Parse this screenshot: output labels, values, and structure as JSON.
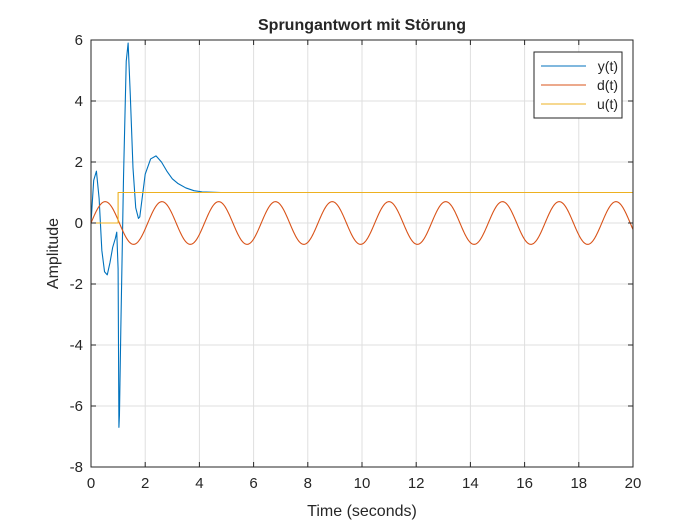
{
  "chart_data": {
    "type": "line",
    "title": "Sprungantwort mit Störung",
    "xlabel": "Time (seconds)",
    "ylabel": "Amplitude",
    "xlim": [
      0,
      20
    ],
    "ylim": [
      -8,
      6
    ],
    "xticks": [
      0,
      2,
      4,
      6,
      8,
      10,
      12,
      14,
      16,
      18,
      20
    ],
    "yticks": [
      -8,
      -6,
      -4,
      -2,
      0,
      2,
      4,
      6
    ],
    "grid": true,
    "legend_position": "top-right",
    "series": [
      {
        "name": "y(t)",
        "color": "#0072BD",
        "x": [
          0,
          0.1,
          0.2,
          0.3,
          0.4,
          0.5,
          0.6,
          0.7,
          0.8,
          0.9,
          0.95,
          1.0,
          1.03,
          1.05,
          1.1,
          1.2,
          1.3,
          1.37,
          1.45,
          1.55,
          1.65,
          1.75,
          1.8,
          1.9,
          2.0,
          2.2,
          2.4,
          2.6,
          2.8,
          3.0,
          3.2,
          3.5,
          3.8,
          4.1,
          4.4,
          4.8,
          5.5,
          20
        ],
        "y": [
          0,
          1.4,
          1.7,
          0.8,
          -0.9,
          -1.6,
          -1.7,
          -1.3,
          -0.8,
          -0.5,
          -0.3,
          -1.5,
          -6.7,
          -6.3,
          -3.5,
          1.5,
          5.3,
          5.9,
          4.2,
          1.8,
          0.5,
          0.15,
          0.2,
          0.9,
          1.6,
          2.1,
          2.2,
          2.0,
          1.7,
          1.45,
          1.3,
          1.15,
          1.06,
          1.02,
          1.01,
          1.0,
          1.0,
          1.0
        ]
      },
      {
        "name": "d(t)",
        "color": "#D95319",
        "function": "0.7*sin(3*t)",
        "x_range": [
          0,
          20
        ]
      },
      {
        "name": "u(t)",
        "color": "#EDB120",
        "x": [
          0,
          1,
          1,
          20
        ],
        "y": [
          0,
          0,
          1,
          1
        ]
      }
    ]
  }
}
